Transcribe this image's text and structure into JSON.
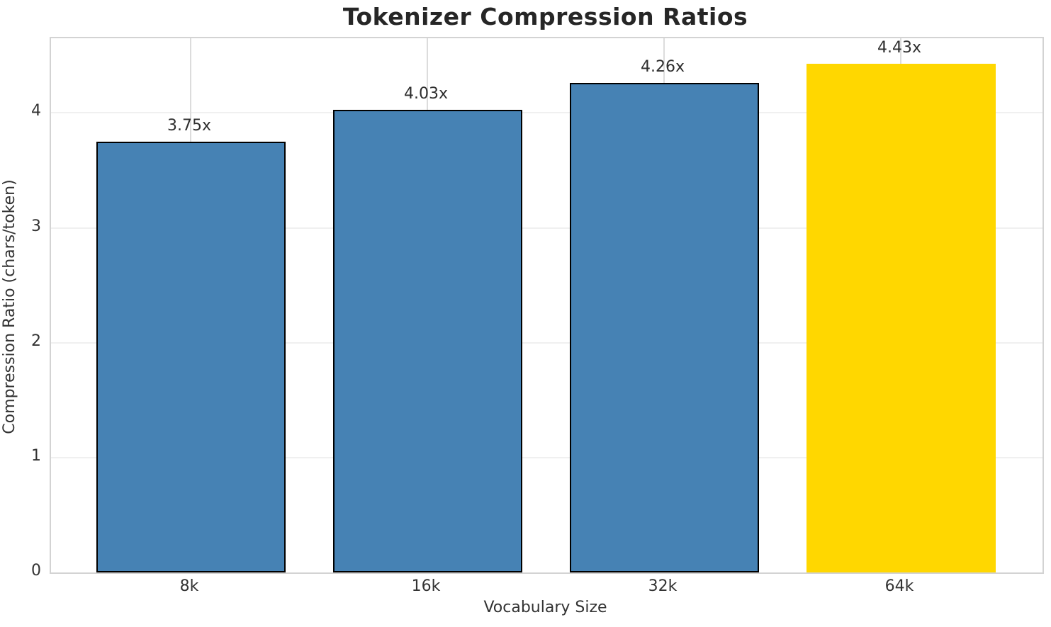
{
  "chart_data": {
    "type": "bar",
    "title": "Tokenizer Compression Ratios",
    "xlabel": "Vocabulary Size",
    "ylabel": "Compression Ratio (chars/token)",
    "categories": [
      "8k",
      "16k",
      "32k",
      "64k"
    ],
    "values": [
      3.75,
      4.03,
      4.26,
      4.43
    ],
    "bar_value_labels": [
      "3.75x",
      "4.03x",
      "4.26x",
      "4.43x"
    ],
    "yticks": [
      "0",
      "1",
      "2",
      "3",
      "4"
    ],
    "ylim": [
      0,
      4.65
    ],
    "grid": true,
    "legend": "none",
    "bar_fill_colors": [
      "#4682B4",
      "#4682B4",
      "#4682B4",
      "#FFD700"
    ],
    "bar_edge_colors": [
      "#000000",
      "#000000",
      "#000000",
      null
    ],
    "highlighted_category": "64k",
    "accent_colors": {
      "steel_blue": "#4682B4",
      "gold": "#FFD700",
      "bar_edge": "#000000"
    }
  }
}
